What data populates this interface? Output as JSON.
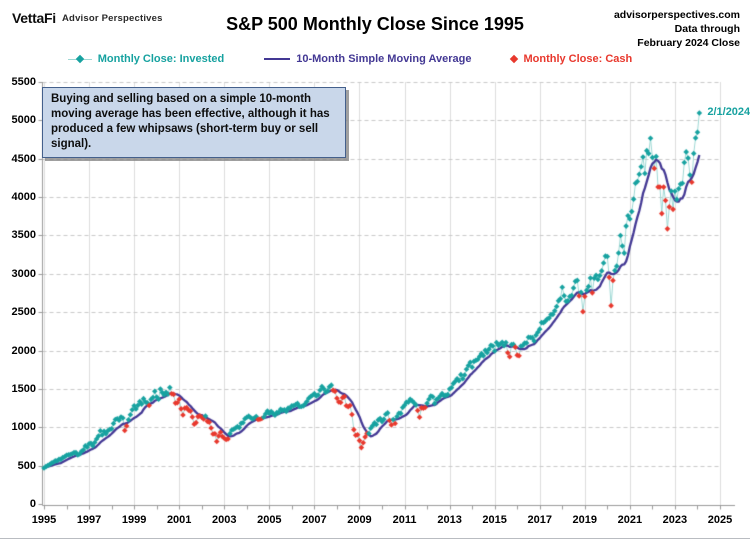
{
  "header": {
    "logo": "VettaFi",
    "logo_sub": "Advisor Perspectives",
    "title": "S&P 500 Monthly Close Since 1995",
    "source_site": "advisorperspectives.com",
    "data_through_1": "Data through",
    "data_through_2": "February 2024 Close"
  },
  "legend": {
    "invested_label": "Monthly Close: Invested",
    "sma_label": "10-Month Simple Moving Average",
    "cash_label": "Monthly Close: Cash"
  },
  "annotation": {
    "text": "Buying and selling based on a simple 10-month moving average has been effective, although it has produced a few whipsaws (short-term buy or sell signal)."
  },
  "last_point_label": "2/1/2024",
  "colors": {
    "invested": "#17a2a0",
    "invested_connector": "#9ed8d4",
    "sma": "#433894",
    "cash": "#e8382d",
    "grid_vertical": "#dcdcdc",
    "grid_horizontal": "#c9c9c9",
    "axis": "#9a9a9a"
  },
  "chart_data": {
    "type": "line",
    "title": "S&P 500 Monthly Close Since 1995",
    "frequency": "monthly",
    "start": {
      "year": 1995,
      "month": 1
    },
    "end": {
      "year": 2024,
      "month": 2
    },
    "xlabel": "",
    "ylabel": "",
    "ylim": [
      0,
      5500
    ],
    "y_ticks": [
      0,
      500,
      1000,
      1500,
      2000,
      2500,
      3000,
      3500,
      4000,
      4500,
      5000,
      5500
    ],
    "x_tick_labels": [
      "1995",
      "1997",
      "1999",
      "2001",
      "2003",
      "2005",
      "2007",
      "2009",
      "2011",
      "2013",
      "2015",
      "2017",
      "2019",
      "2021",
      "2023",
      "2025"
    ],
    "x_axis_years": [
      1995,
      2025
    ],
    "grid": {
      "horizontal": "dashed",
      "vertical": "solid every 2 years"
    },
    "legend_position": "top",
    "sma_window": 10,
    "signal_rule": "marker shown as Cash (red) when monthly close is below the 10-month simple moving average, otherwise Invested (teal)",
    "last_point": {
      "date": "2/1/2024",
      "value": 5096
    },
    "series": [
      {
        "name": "S&P 500 Monthly Close",
        "values": [
          470,
          487,
          501,
          515,
          533,
          545,
          562,
          562,
          584,
          582,
          605,
          616,
          636,
          640,
          646,
          654,
          669,
          671,
          640,
          652,
          687,
          705,
          757,
          741,
          786,
          791,
          757,
          801,
          848,
          885,
          954,
          899,
          947,
          915,
          955,
          970,
          980,
          1049,
          1102,
          1112,
          1091,
          1134,
          1121,
          957,
          1017,
          1099,
          1164,
          1229,
          1280,
          1238,
          1286,
          1335,
          1302,
          1373,
          1329,
          1320,
          1283,
          1363,
          1389,
          1469,
          1394,
          1366,
          1499,
          1452,
          1421,
          1455,
          1431,
          1518,
          1437,
          1429,
          1315,
          1320,
          1366,
          1240,
          1160,
          1249,
          1256,
          1224,
          1211,
          1134,
          1041,
          1060,
          1139,
          1148,
          1130,
          1107,
          1147,
          1077,
          1067,
          990,
          912,
          916,
          815,
          886,
          936,
          880,
          856,
          841,
          848,
          917,
          964,
          975,
          990,
          1008,
          996,
          1051,
          1058,
          1112,
          1131,
          1145,
          1126,
          1107,
          1121,
          1141,
          1102,
          1104,
          1115,
          1130,
          1174,
          1212,
          1181,
          1204,
          1181,
          1157,
          1192,
          1191,
          1234,
          1220,
          1229,
          1207,
          1249,
          1248,
          1280,
          1281,
          1295,
          1311,
          1270,
          1270,
          1277,
          1304,
          1336,
          1378,
          1401,
          1418,
          1438,
          1407,
          1421,
          1482,
          1531,
          1503,
          1455,
          1474,
          1527,
          1549,
          1481,
          1468,
          1379,
          1331,
          1323,
          1386,
          1400,
          1280,
          1267,
          1283,
          1166,
          969,
          896,
          903,
          826,
          735,
          798,
          873,
          919,
          919,
          987,
          1021,
          1057,
          1036,
          1096,
          1115,
          1074,
          1104,
          1169,
          1187,
          1089,
          1031,
          1102,
          1049,
          1141,
          1183,
          1181,
          1258,
          1286,
          1327,
          1326,
          1364,
          1345,
          1321,
          1292,
          1219,
          1131,
          1253,
          1247,
          1258,
          1312,
          1366,
          1408,
          1398,
          1310,
          1362,
          1379,
          1407,
          1441,
          1412,
          1416,
          1426,
          1498,
          1515,
          1569,
          1598,
          1631,
          1606,
          1686,
          1633,
          1682,
          1757,
          1806,
          1848,
          1783,
          1859,
          1872,
          1884,
          1924,
          1960,
          1931,
          2003,
          1972,
          2018,
          2068,
          2059,
          1995,
          2105,
          2068,
          2086,
          2107,
          2063,
          2104,
          1972,
          1920,
          2079,
          2080,
          2044,
          1940,
          1932,
          2060,
          2065,
          2097,
          2099,
          2174,
          2171,
          2168,
          2126,
          2199,
          2239,
          2279,
          2364,
          2363,
          2384,
          2412,
          2423,
          2470,
          2472,
          2519,
          2575,
          2648,
          2674,
          2824,
          2714,
          2641,
          2648,
          2705,
          2718,
          2816,
          2902,
          2914,
          2712,
          2760,
          2507,
          2704,
          2785,
          2834,
          2946,
          2752,
          2942,
          2980,
          2926,
          2977,
          3038,
          3141,
          3231,
          3226,
          2954,
          2585,
          2912,
          3044,
          3100,
          3271,
          3500,
          3363,
          3270,
          3622,
          3756,
          3714,
          3811,
          3973,
          4181,
          4204,
          4298,
          4395,
          4523,
          4308,
          4605,
          4567,
          4766,
          4516,
          4374,
          4530,
          4132,
          4132,
          3785,
          4130,
          3955,
          3586,
          3872,
          4080,
          3840,
          4077,
          3970,
          4109,
          4169,
          4180,
          4450,
          4589,
          4508,
          4288,
          4194,
          4568,
          4770,
          4846,
          5096
        ]
      },
      {
        "name": "10-Month Simple Moving Average",
        "derived_from": "S&P 500 Monthly Close",
        "derivation": "trailing 10-month simple moving average"
      }
    ]
  }
}
